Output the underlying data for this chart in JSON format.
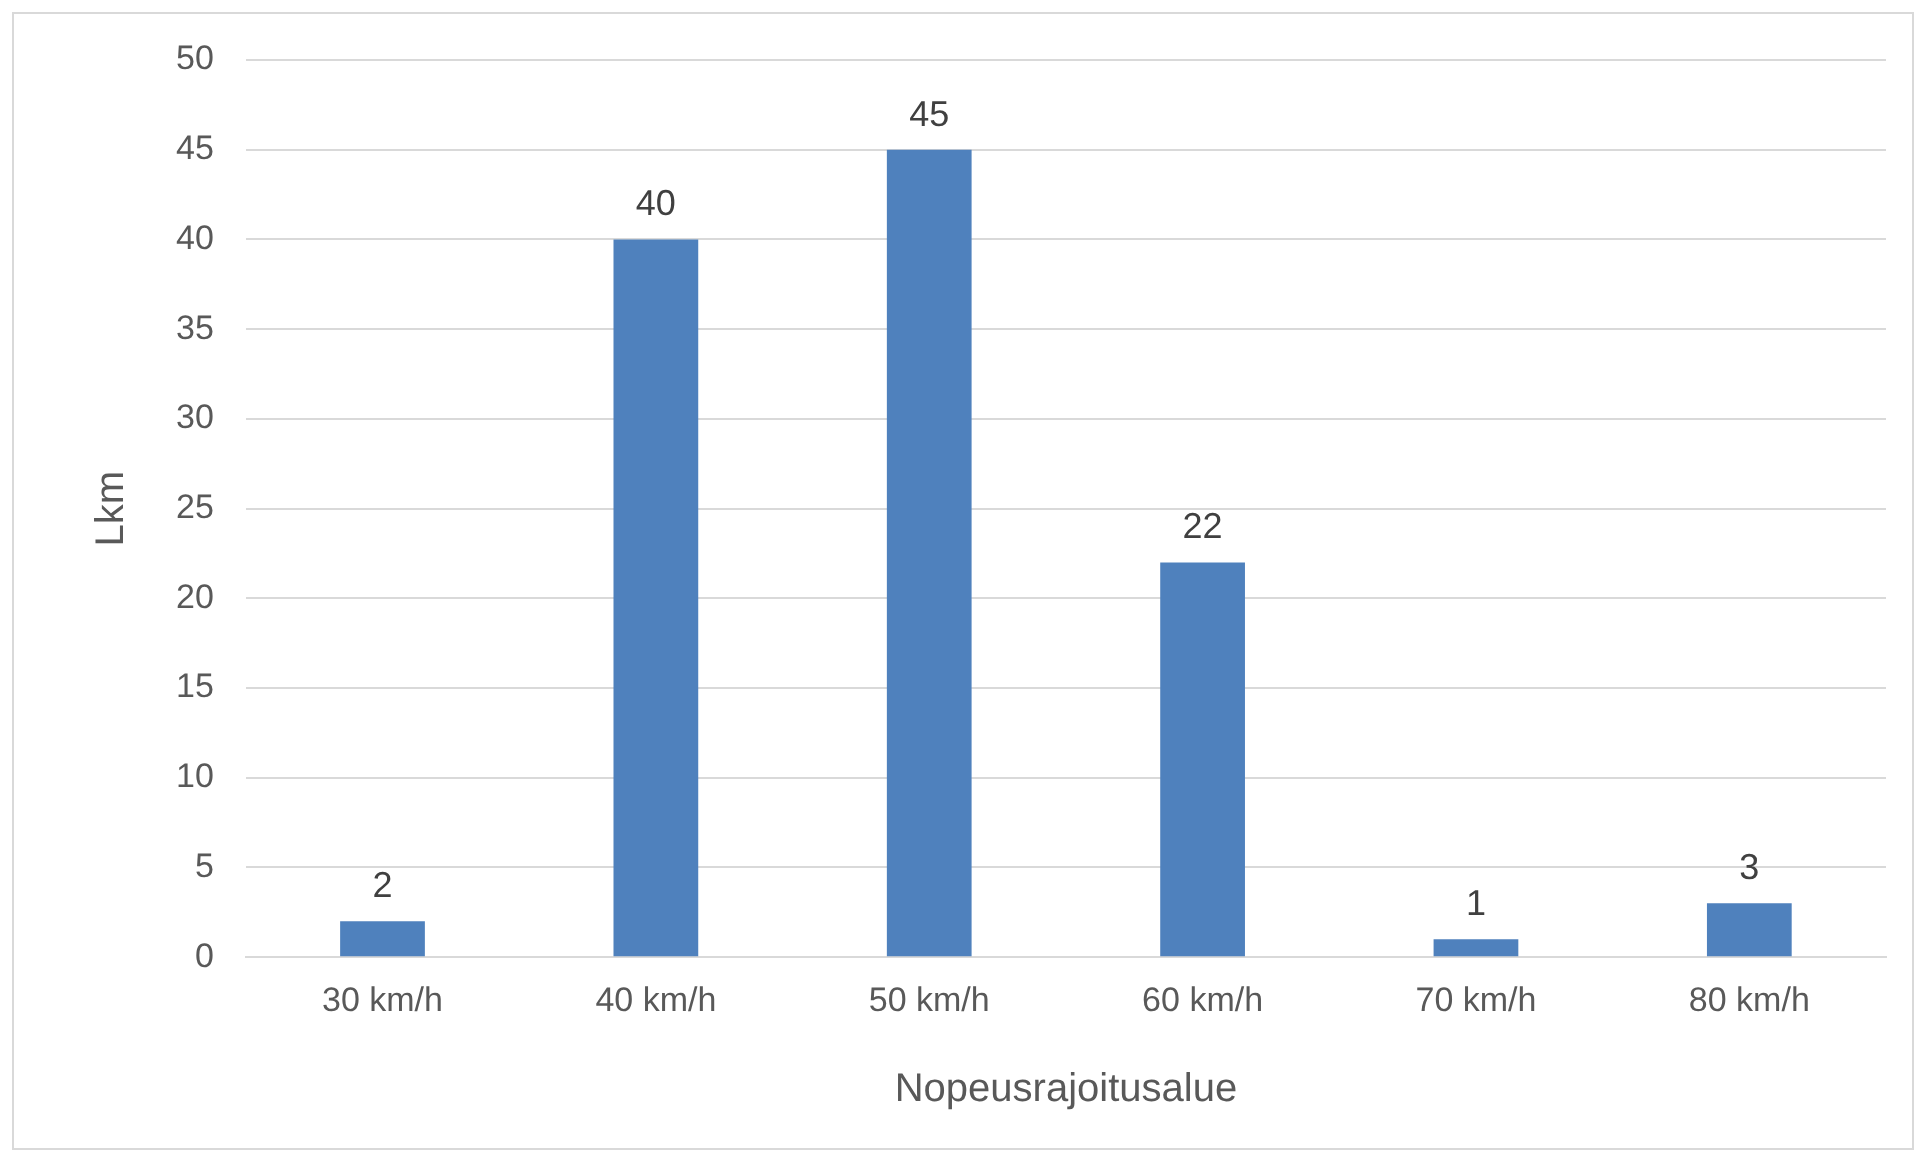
{
  "chart_data": {
    "type": "bar",
    "xlabel": "Nopeusrajoitusalue",
    "ylabel": "Lkm",
    "categories": [
      "30 km/h",
      "40 km/h",
      "50 km/h",
      "60 km/h",
      "70 km/h",
      "80 km/h"
    ],
    "values": [
      2,
      40,
      45,
      22,
      1,
      3
    ],
    "color": "#4f81bd",
    "ylim": [
      0,
      50
    ],
    "yticks": [
      0,
      5,
      10,
      15,
      20,
      25,
      30,
      35,
      40,
      45,
      50
    ],
    "grid": "y",
    "data_labels": true,
    "legend": false
  }
}
